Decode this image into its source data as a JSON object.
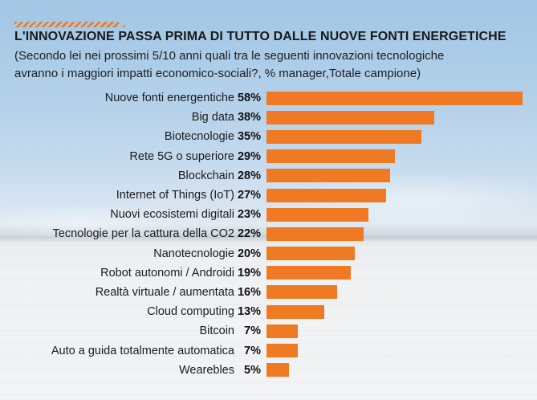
{
  "page": {
    "title": "L'INNOVAZIONE PASSA PRIMA DI TUTTO DALLE NUOVE FONTI ENERGETICHE",
    "subtitle_line1": "(Secondo lei nei prossimi 5/10 anni quali tra le seguenti innovazioni tecnologiche",
    "subtitle_line2": "avranno i maggiori impatti economico-sociali?, % manager,Totale campione)"
  },
  "colors": {
    "accent_orange": "#EF7A23",
    "title_text": "#191919",
    "sky_top": "#A2C6E4",
    "ground_white": "#F2F3F4"
  },
  "chart_data": {
    "type": "bar",
    "orientation": "horizontal",
    "title": "L'INNOVAZIONE PASSA PRIMA DI TUTTO DALLE NUOVE FONTI ENERGETICHE",
    "subtitle": "(Secondo lei nei prossimi 5/10 anni quali tra le seguenti innovazioni tecnologiche avranno i maggiori impatti economico-sociali?, % manager,Totale campione)",
    "categories": [
      "Nuove fonti energentiche",
      "Big data",
      "Biotecnologie",
      "Rete 5G o superiore",
      "Blockchain",
      "Internet of Things (IoT)",
      "Nuovi ecosistemi digitali",
      "Tecnologie per la cattura della CO2",
      "Nanotecnologie",
      "Robot autonomi / Androidi",
      "Realtà virtuale / aumentata",
      "Cloud computing",
      "Bitcoin",
      "Auto a guida totalmente automatica",
      "Wearebles"
    ],
    "values": [
      58,
      38,
      35,
      29,
      28,
      27,
      23,
      22,
      20,
      19,
      16,
      13,
      7,
      7,
      5
    ],
    "value_suffix": "%",
    "xlabel": "",
    "ylabel": "",
    "xlim": [
      0,
      60
    ],
    "grid": false,
    "legend": false,
    "bar_color": "#EF7A23",
    "data_labels": "bold percentages shown left of each bar"
  }
}
